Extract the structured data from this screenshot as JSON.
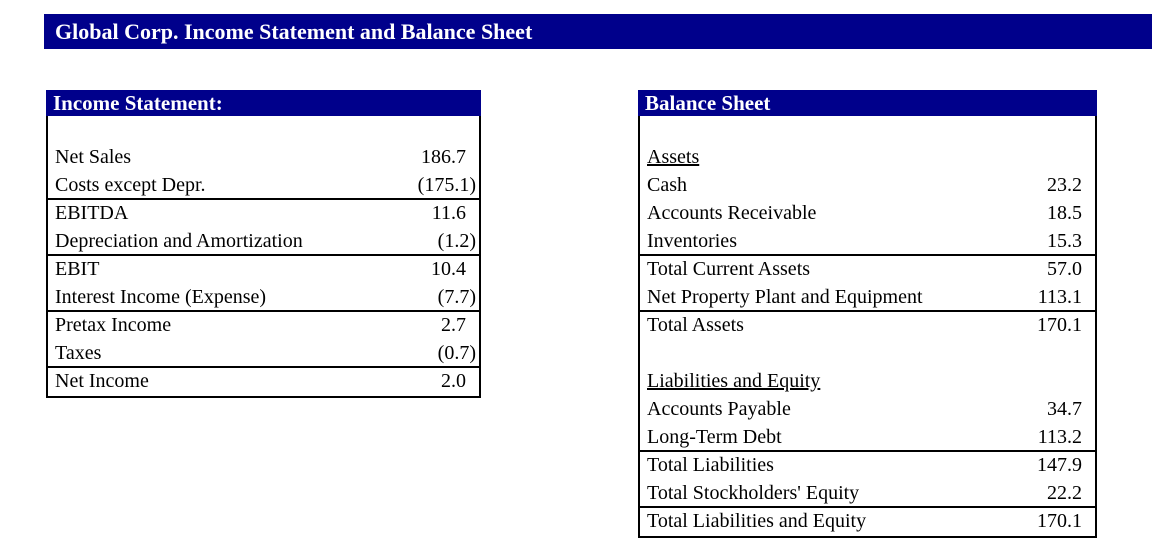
{
  "page_title": "Global Corp. Income Statement and Balance Sheet",
  "colors": {
    "header_navy": "#00008B",
    "header_text": "#ffffff",
    "body_text": "#000000",
    "border": "#000000"
  },
  "income_statement": {
    "header": "Income Statement:",
    "rows": [
      {
        "label": "",
        "value": "",
        "divider": false,
        "underline": false
      },
      {
        "label": "Net Sales",
        "value": "186.7",
        "divider": false,
        "underline": false
      },
      {
        "label": "Costs except Depr.",
        "value": "(175.1)",
        "divider": true,
        "underline": false
      },
      {
        "label": "EBITDA",
        "value": "11.6",
        "divider": false,
        "underline": false
      },
      {
        "label": "Depreciation and Amortization",
        "value": "(1.2)",
        "divider": true,
        "underline": false
      },
      {
        "label": "EBIT",
        "value": "10.4",
        "divider": false,
        "underline": false
      },
      {
        "label": "Interest Income (Expense)",
        "value": "(7.7)",
        "divider": true,
        "underline": false
      },
      {
        "label": "Pretax Income",
        "value": "2.7",
        "divider": false,
        "underline": false
      },
      {
        "label": "Taxes",
        "value": "(0.7)",
        "divider": true,
        "underline": false
      },
      {
        "label": "Net Income",
        "value": "2.0",
        "divider": false,
        "underline": false
      }
    ]
  },
  "balance_sheet": {
    "header": "Balance Sheet",
    "rows": [
      {
        "label": "",
        "value": "",
        "divider": false,
        "underline": false
      },
      {
        "label": "Assets",
        "value": "",
        "divider": false,
        "underline": true
      },
      {
        "label": "Cash",
        "value": "23.2",
        "divider": false,
        "underline": false
      },
      {
        "label": "Accounts Receivable",
        "value": "18.5",
        "divider": false,
        "underline": false
      },
      {
        "label": "Inventories",
        "value": "15.3",
        "divider": true,
        "underline": false
      },
      {
        "label": "Total Current Assets",
        "value": "57.0",
        "divider": false,
        "underline": false
      },
      {
        "label": "Net Property Plant and Equipment",
        "value": "113.1",
        "divider": true,
        "underline": false
      },
      {
        "label": "Total Assets",
        "value": "170.1",
        "divider": false,
        "underline": false
      },
      {
        "label": "",
        "value": "",
        "divider": false,
        "underline": false
      },
      {
        "label": "Liabilities and Equity",
        "value": "",
        "divider": false,
        "underline": true
      },
      {
        "label": "Accounts Payable",
        "value": "34.7",
        "divider": false,
        "underline": false
      },
      {
        "label": "Long-Term Debt",
        "value": "113.2",
        "divider": true,
        "underline": false
      },
      {
        "label": "Total Liabilities",
        "value": "147.9",
        "divider": false,
        "underline": false
      },
      {
        "label": "Total Stockholders' Equity",
        "value": "22.2",
        "divider": true,
        "underline": false
      },
      {
        "label": "Total Liabilities and Equity",
        "value": "170.1",
        "divider": false,
        "underline": false
      }
    ]
  }
}
